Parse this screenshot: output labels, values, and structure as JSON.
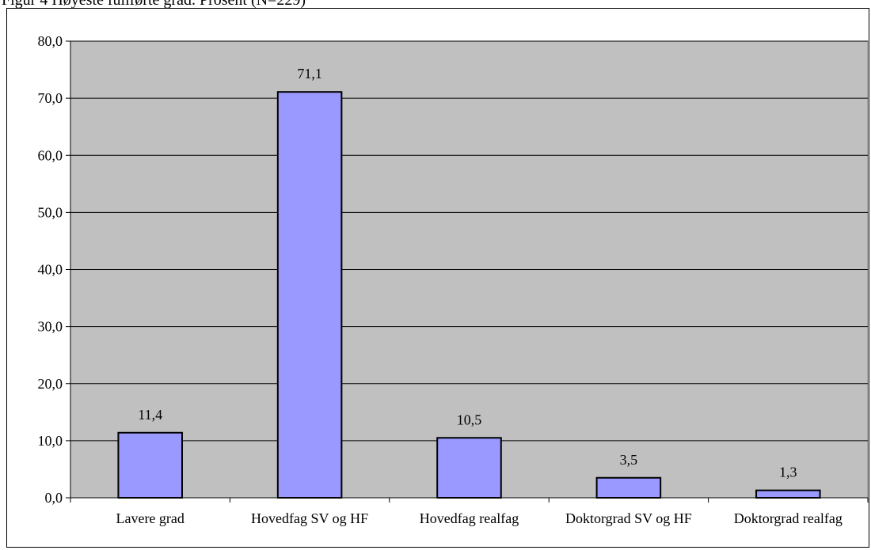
{
  "figure_caption": "Figur 4 Høyeste fullførte grad. Prosent (N=229)",
  "chart_data": {
    "type": "bar",
    "title": "",
    "xlabel": "",
    "ylabel": "",
    "categories": [
      "Lavere grad",
      "Hovedfag SV og HF",
      "Hovedfag realfag",
      "Doktorgrad SV og HF",
      "Doktorgrad realfag"
    ],
    "values": [
      11.4,
      71.1,
      10.5,
      3.5,
      1.3
    ],
    "value_labels": [
      "11,4",
      "71,1",
      "10,5",
      "3,5",
      "1,3"
    ],
    "ylim": [
      0,
      80
    ],
    "yticks": [
      0,
      10,
      20,
      30,
      40,
      50,
      60,
      70,
      80
    ],
    "ytick_labels": [
      "0,0",
      "10,0",
      "20,0",
      "30,0",
      "40,0",
      "50,0",
      "60,0",
      "70,0",
      "80,0"
    ],
    "grid": true,
    "legend": "none",
    "colors": {
      "bar_fill": "#9999ff",
      "bar_stroke": "#000000",
      "plot_background": "#c0c0c0",
      "gridline": "#000000"
    }
  }
}
